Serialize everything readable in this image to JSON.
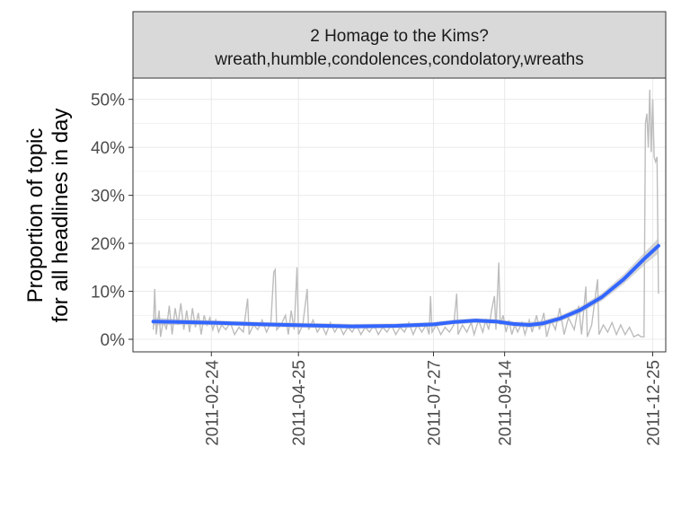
{
  "chart_data": {
    "type": "line",
    "title": "2 Homage to the Kims?",
    "subtitle": "wreath,humble,condolences,condolatory,wreaths",
    "ylabel_line1": "Proportion of topic",
    "ylabel_line2": "for all headlines in day",
    "xlabel": "",
    "x_ticks": [
      "2011-02-24",
      "2011-04-25",
      "2011-07-27",
      "2011-09-14",
      "2011-12-25"
    ],
    "y_ticks": [
      "0%",
      "10%",
      "20%",
      "30%",
      "40%",
      "50%"
    ],
    "ylim": [
      0,
      0.52
    ],
    "x_range": [
      "2011-01-01",
      "2012-01-03"
    ],
    "grid": true,
    "colors": {
      "raw_line": "#bdbdbd",
      "smooth_line": "#3366ff",
      "ribbon": "#c8c8c8",
      "strip_fill": "#d9d9d9",
      "grid": "#ebebeb"
    },
    "raw_series": {
      "name": "",
      "points": [
        [
          "2011-01-15",
          0.02
        ],
        [
          "2011-01-16",
          0.105
        ],
        [
          "2011-01-17",
          0.01
        ],
        [
          "2011-01-19",
          0.06
        ],
        [
          "2011-01-20",
          0.005
        ],
        [
          "2011-01-22",
          0.04
        ],
        [
          "2011-01-24",
          0.02
        ],
        [
          "2011-01-26",
          0.07
        ],
        [
          "2011-01-28",
          0.01
        ],
        [
          "2011-01-30",
          0.065
        ],
        [
          "2011-02-01",
          0.03
        ],
        [
          "2011-02-03",
          0.075
        ],
        [
          "2011-02-05",
          0.02
        ],
        [
          "2011-02-07",
          0.06
        ],
        [
          "2011-02-09",
          0.015
        ],
        [
          "2011-02-11",
          0.065
        ],
        [
          "2011-02-13",
          0.025
        ],
        [
          "2011-02-15",
          0.055
        ],
        [
          "2011-02-17",
          0.01
        ],
        [
          "2011-02-19",
          0.05
        ],
        [
          "2011-02-21",
          0.03
        ],
        [
          "2011-02-23",
          0.045
        ],
        [
          "2011-02-25",
          0.02
        ],
        [
          "2011-02-27",
          0.04
        ],
        [
          "2011-03-01",
          0.015
        ],
        [
          "2011-03-03",
          0.03
        ],
        [
          "2011-03-06",
          0.02
        ],
        [
          "2011-03-09",
          0.035
        ],
        [
          "2011-03-12",
          0.01
        ],
        [
          "2011-03-15",
          0.025
        ],
        [
          "2011-03-18",
          0.015
        ],
        [
          "2011-03-21",
          0.085
        ],
        [
          "2011-03-22",
          0.01
        ],
        [
          "2011-03-25",
          0.03
        ],
        [
          "2011-03-28",
          0.02
        ],
        [
          "2011-03-31",
          0.04
        ],
        [
          "2011-04-03",
          0.015
        ],
        [
          "2011-04-06",
          0.035
        ],
        [
          "2011-04-08",
          0.14
        ],
        [
          "2011-04-09",
          0.145
        ],
        [
          "2011-04-10",
          0.02
        ],
        [
          "2011-04-13",
          0.03
        ],
        [
          "2011-04-16",
          0.05
        ],
        [
          "2011-04-18",
          0.01
        ],
        [
          "2011-04-20",
          0.06
        ],
        [
          "2011-04-22",
          0.02
        ],
        [
          "2011-04-24",
          0.15
        ],
        [
          "2011-04-25",
          0.01
        ],
        [
          "2011-04-28",
          0.03
        ],
        [
          "2011-05-01",
          0.105
        ],
        [
          "2011-05-02",
          0.02
        ],
        [
          "2011-05-05",
          0.04
        ],
        [
          "2011-05-08",
          0.015
        ],
        [
          "2011-05-11",
          0.03
        ],
        [
          "2011-05-14",
          0.01
        ],
        [
          "2011-05-17",
          0.035
        ],
        [
          "2011-05-20",
          0.015
        ],
        [
          "2011-05-23",
          0.03
        ],
        [
          "2011-05-26",
          0.01
        ],
        [
          "2011-05-29",
          0.025
        ],
        [
          "2011-06-01",
          0.015
        ],
        [
          "2011-06-04",
          0.03
        ],
        [
          "2011-06-07",
          0.01
        ],
        [
          "2011-06-10",
          0.025
        ],
        [
          "2011-06-13",
          0.015
        ],
        [
          "2011-06-16",
          0.03
        ],
        [
          "2011-06-19",
          0.01
        ],
        [
          "2011-06-22",
          0.025
        ],
        [
          "2011-06-25",
          0.015
        ],
        [
          "2011-06-28",
          0.03
        ],
        [
          "2011-07-01",
          0.01
        ],
        [
          "2011-07-04",
          0.025
        ],
        [
          "2011-07-07",
          0.015
        ],
        [
          "2011-07-10",
          0.035
        ],
        [
          "2011-07-13",
          0.01
        ],
        [
          "2011-07-16",
          0.03
        ],
        [
          "2011-07-19",
          0.015
        ],
        [
          "2011-07-22",
          0.03
        ],
        [
          "2011-07-24",
          0.01
        ],
        [
          "2011-07-25",
          0.09
        ],
        [
          "2011-07-26",
          0.015
        ],
        [
          "2011-07-29",
          0.03
        ],
        [
          "2011-08-01",
          0.01
        ],
        [
          "2011-08-04",
          0.025
        ],
        [
          "2011-08-07",
          0.015
        ],
        [
          "2011-08-10",
          0.03
        ],
        [
          "2011-08-12",
          0.095
        ],
        [
          "2011-08-13",
          0.01
        ],
        [
          "2011-08-16",
          0.03
        ],
        [
          "2011-08-19",
          0.015
        ],
        [
          "2011-08-22",
          0.035
        ],
        [
          "2011-08-24",
          0.01
        ],
        [
          "2011-08-27",
          0.04
        ],
        [
          "2011-08-30",
          0.015
        ],
        [
          "2011-09-01",
          0.04
        ],
        [
          "2011-09-03",
          0.02
        ],
        [
          "2011-09-05",
          0.06
        ],
        [
          "2011-09-07",
          0.09
        ],
        [
          "2011-09-08",
          0.02
        ],
        [
          "2011-09-10",
          0.16
        ],
        [
          "2011-09-11",
          0.03
        ],
        [
          "2011-09-13",
          0.05
        ],
        [
          "2011-09-15",
          0.015
        ],
        [
          "2011-09-17",
          0.04
        ],
        [
          "2011-09-19",
          0.01
        ],
        [
          "2011-09-21",
          0.03
        ],
        [
          "2011-09-23",
          0.015
        ],
        [
          "2011-09-26",
          0.035
        ],
        [
          "2011-09-28",
          0.01
        ],
        [
          "2011-10-01",
          0.04
        ],
        [
          "2011-10-03",
          0.015
        ],
        [
          "2011-10-06",
          0.05
        ],
        [
          "2011-10-08",
          0.02
        ],
        [
          "2011-10-11",
          0.055
        ],
        [
          "2011-10-13",
          0.005
        ],
        [
          "2011-10-16",
          0.04
        ],
        [
          "2011-10-19",
          0.02
        ],
        [
          "2011-10-22",
          0.065
        ],
        [
          "2011-10-25",
          0.01
        ],
        [
          "2011-10-28",
          0.045
        ],
        [
          "2011-11-01",
          0.02
        ],
        [
          "2011-11-04",
          0.07
        ],
        [
          "2011-11-06",
          0.01
        ],
        [
          "2011-11-09",
          0.11
        ],
        [
          "2011-11-10",
          0.005
        ],
        [
          "2011-11-13",
          0.03
        ],
        [
          "2011-11-17",
          0.125
        ],
        [
          "2011-11-18",
          0.01
        ],
        [
          "2011-11-21",
          0.03
        ],
        [
          "2011-11-24",
          0.015
        ],
        [
          "2011-11-27",
          0.035
        ],
        [
          "2011-11-30",
          0.01
        ],
        [
          "2011-12-03",
          0.03
        ],
        [
          "2011-12-06",
          0.01
        ],
        [
          "2011-12-09",
          0.025
        ],
        [
          "2011-12-12",
          0.005
        ],
        [
          "2011-12-15",
          0.01
        ],
        [
          "2011-12-17",
          0.005
        ],
        [
          "2011-12-19",
          0.005
        ],
        [
          "2011-12-20",
          0.45
        ],
        [
          "2011-12-21",
          0.47
        ],
        [
          "2011-12-22",
          0.4
        ],
        [
          "2011-12-23",
          0.52
        ],
        [
          "2011-12-24",
          0.39
        ],
        [
          "2011-12-25",
          0.5
        ],
        [
          "2011-12-26",
          0.38
        ],
        [
          "2011-12-27",
          0.37
        ],
        [
          "2011-12-28",
          0.38
        ],
        [
          "2011-12-29",
          0.095
        ]
      ]
    },
    "smooth_series": {
      "name": "",
      "points": [
        [
          "2011-01-15",
          0.037
        ],
        [
          "2011-02-01",
          0.036
        ],
        [
          "2011-03-01",
          0.034
        ],
        [
          "2011-04-01",
          0.031
        ],
        [
          "2011-05-01",
          0.029
        ],
        [
          "2011-06-01",
          0.027
        ],
        [
          "2011-07-01",
          0.028
        ],
        [
          "2011-07-27",
          0.031
        ],
        [
          "2011-08-10",
          0.036
        ],
        [
          "2011-08-25",
          0.039
        ],
        [
          "2011-09-08",
          0.037
        ],
        [
          "2011-09-20",
          0.032
        ],
        [
          "2011-10-01",
          0.03
        ],
        [
          "2011-10-10",
          0.033
        ],
        [
          "2011-10-22",
          0.043
        ],
        [
          "2011-11-05",
          0.061
        ],
        [
          "2011-11-20",
          0.088
        ],
        [
          "2011-12-05",
          0.125
        ],
        [
          "2011-12-20",
          0.17
        ],
        [
          "2011-12-29",
          0.195
        ]
      ],
      "band": [
        0.008,
        0.006,
        0.005,
        0.005,
        0.005,
        0.005,
        0.005,
        0.005,
        0.005,
        0.005,
        0.005,
        0.005,
        0.006,
        0.006,
        0.006,
        0.007,
        0.008,
        0.01,
        0.013,
        0.016
      ]
    }
  }
}
